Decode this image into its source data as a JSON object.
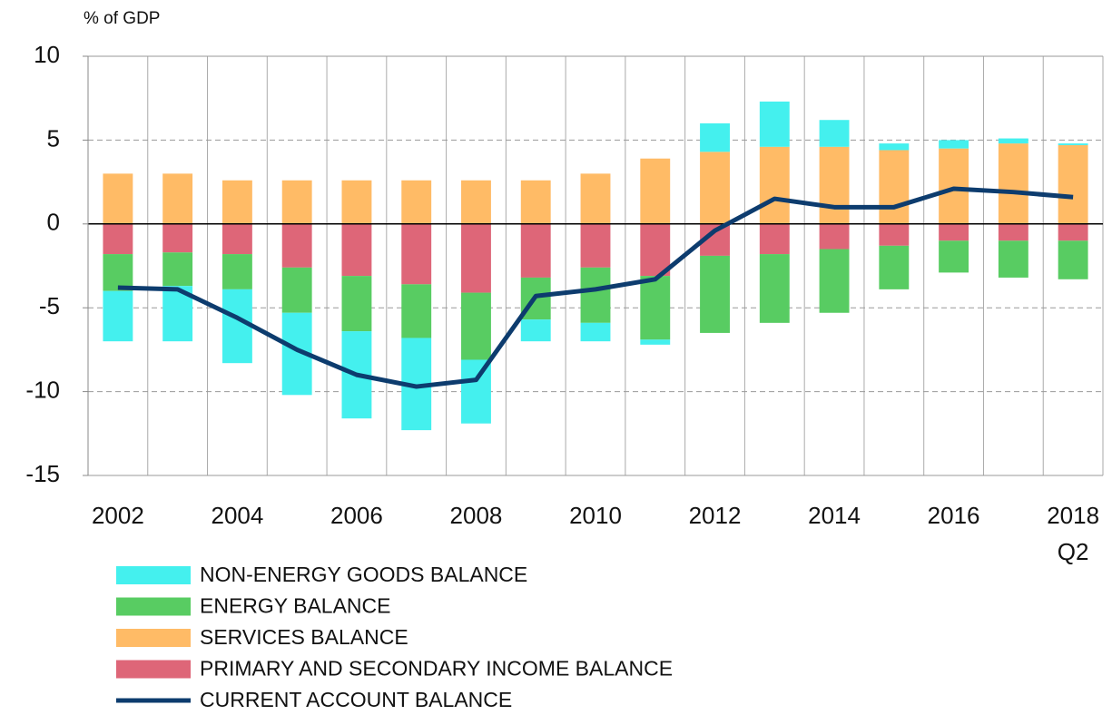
{
  "chart_data": {
    "type": "stacked_bar_line",
    "y_axis_label": "% of GDP",
    "categories": [
      "2002",
      null,
      "2004",
      null,
      "2006",
      null,
      "2008",
      null,
      "2010",
      null,
      "2012",
      null,
      "2014",
      null,
      "2016",
      null,
      "2018\nQ2"
    ],
    "series": [
      {
        "name": "NON-ENERGY GOODS BALANCE",
        "color": "#44f0ee",
        "values": [
          -3.0,
          -3.3,
          -4.4,
          -4.9,
          -5.2,
          -5.5,
          -3.8,
          -1.3,
          -1.1,
          -0.3,
          1.7,
          2.7,
          1.6,
          0.4,
          0.5,
          0.3,
          0.1
        ]
      },
      {
        "name": "ENERGY BALANCE",
        "color": "#58cc62",
        "values": [
          -2.2,
          -2.0,
          -2.1,
          -2.7,
          -3.3,
          -3.2,
          -4.0,
          -2.5,
          -3.3,
          -3.8,
          -4.6,
          -4.1,
          -3.8,
          -2.6,
          -1.9,
          -2.2,
          -2.3
        ]
      },
      {
        "name": "SERVICES BALANCE",
        "color": "#ffbb66",
        "values": [
          3.0,
          3.0,
          2.6,
          2.6,
          2.6,
          2.6,
          2.6,
          2.6,
          3.0,
          3.9,
          4.3,
          4.6,
          4.6,
          4.4,
          4.5,
          4.8,
          4.7
        ]
      },
      {
        "name": "PRIMARY AND SECONDARY INCOME BALANCE",
        "color": "#de6678",
        "values": [
          -1.8,
          -1.7,
          -1.8,
          -2.6,
          -3.1,
          -3.6,
          -4.1,
          -3.2,
          -2.6,
          -3.1,
          -1.9,
          -1.8,
          -1.5,
          -1.3,
          -1.0,
          -1.0,
          -1.0
        ]
      },
      {
        "name": "CURRENT ACCOUNT BALANCE",
        "color": "#0d3c6e",
        "type": "line",
        "values": [
          -3.8,
          -3.9,
          -5.6,
          -7.5,
          -9.0,
          -9.7,
          -9.3,
          -4.3,
          -3.9,
          -3.3,
          -0.4,
          1.5,
          1.0,
          1.0,
          2.1,
          1.9,
          1.6
        ]
      }
    ],
    "ylim": [
      -15,
      10
    ],
    "yticks": [
      -15,
      -10,
      -5,
      0,
      5,
      10
    ],
    "grid": true
  }
}
